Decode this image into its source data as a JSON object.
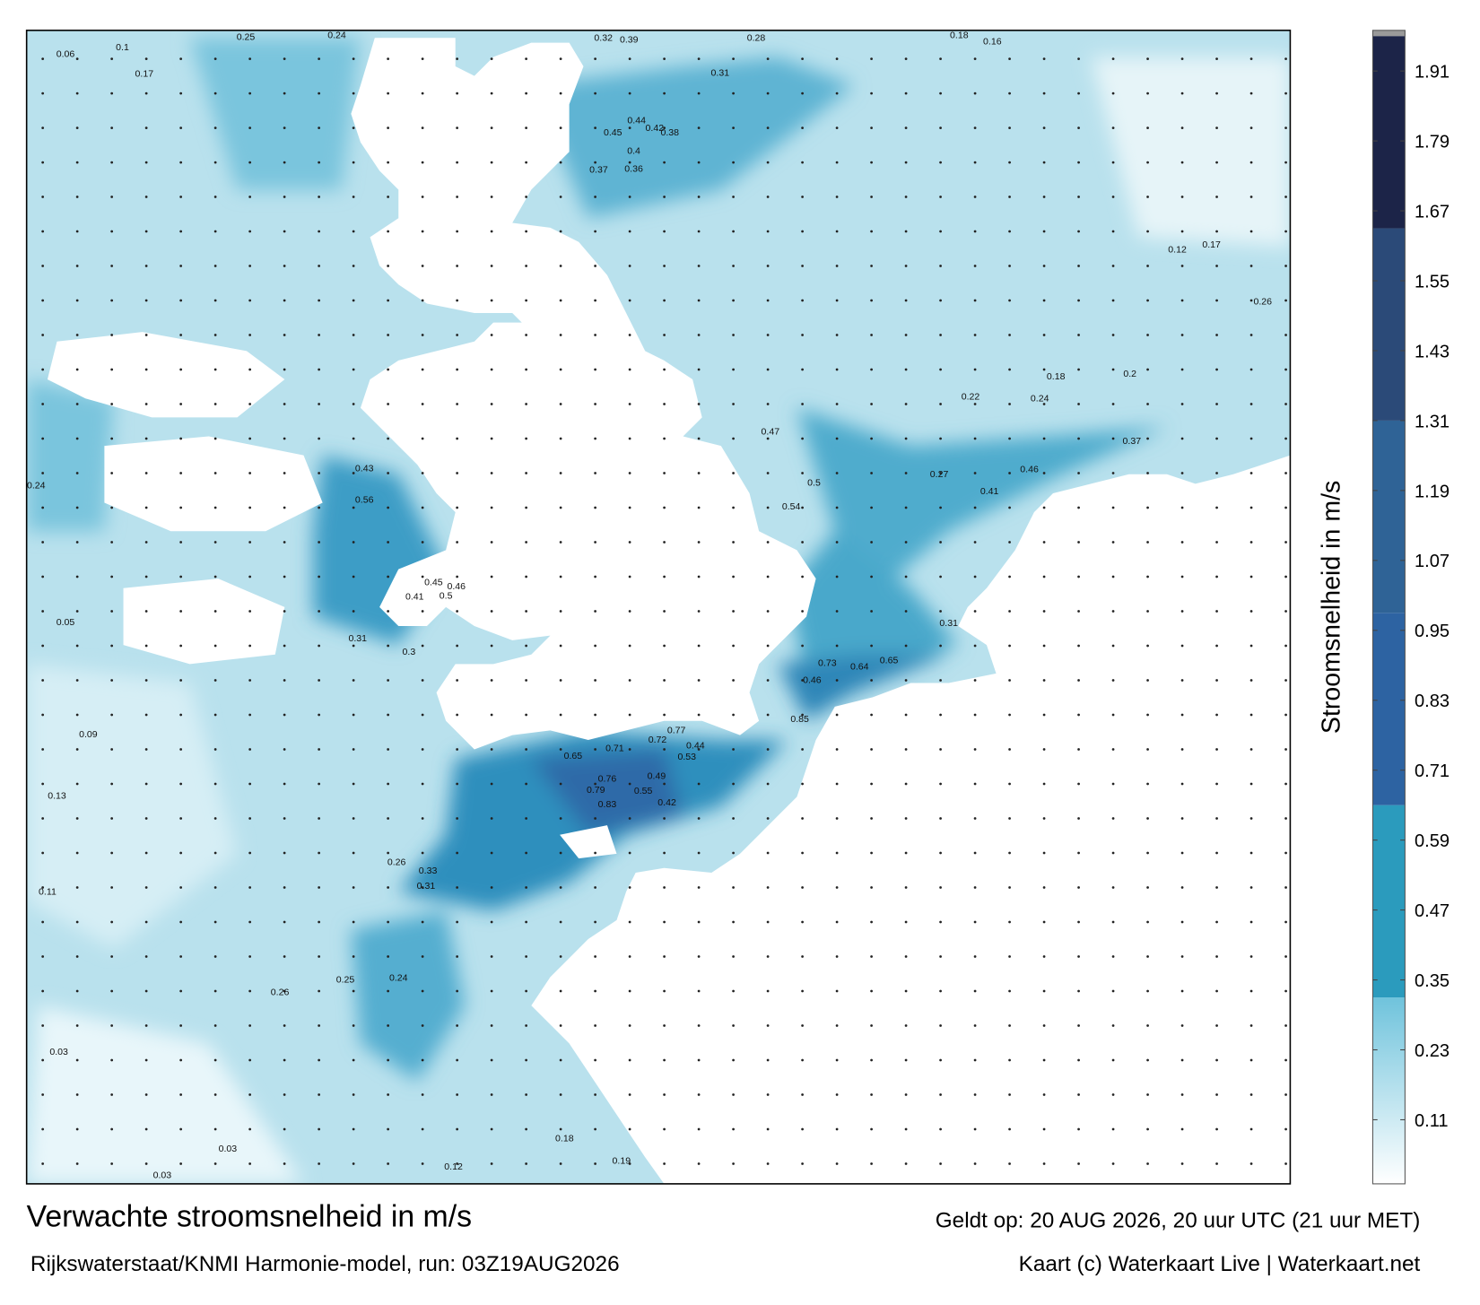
{
  "title": "Verwachte stroomsnelheid in m/s",
  "source": "Rijkswaterstaat/KNMI Harmonie-model, run: 03Z19AUG2026",
  "valid": "Geldt op: 20 AUG 2026, 20 uur UTC (21 uur MET)",
  "credit": "Kaart (c) Waterkaart Live | Waterkaart.net",
  "colorbar": {
    "label": "Stroomsnelheid in m/s",
    "lim": [
      0,
      1.97
    ],
    "ticks": [
      0.11,
      0.23,
      0.35,
      0.47,
      0.59,
      0.71,
      0.83,
      0.95,
      1.07,
      1.19,
      1.31,
      1.43,
      1.55,
      1.67,
      1.79,
      1.91
    ],
    "bands": [
      {
        "from": 0,
        "to": 0.32,
        "colors": [
          "#ffffff",
          "#6fc3dc"
        ]
      },
      {
        "from": 0.32,
        "to": 0.65,
        "colors": [
          "#2b9bbd",
          "#2b9bbd"
        ]
      },
      {
        "from": 0.65,
        "to": 0.98,
        "colors": [
          "#2d63a2",
          "#2d63a2"
        ]
      },
      {
        "from": 0.98,
        "to": 1.31,
        "colors": [
          "#2f6396",
          "#2f6396"
        ]
      },
      {
        "from": 1.31,
        "to": 1.64,
        "colors": [
          "#2b4a78",
          "#2b4a78"
        ]
      },
      {
        "from": 1.64,
        "to": 1.97,
        "colors": [
          "#1c2448",
          "#1c2448"
        ]
      }
    ],
    "cap_color": "#9a9a9a"
  },
  "map": {
    "labels": [
      0.65,
      0.76,
      0.79,
      0.83,
      0.71,
      0.72,
      0.77,
      0.55,
      0.49,
      0.53,
      0.44,
      0.42,
      0.73,
      0.64,
      0.85,
      0.65,
      0.46,
      0.45,
      0.46,
      0.5,
      0.41,
      0.56,
      0.43,
      0.44,
      0.42,
      0.45,
      0.4,
      0.38,
      0.36,
      0.37,
      0.39,
      0.32,
      0.31,
      0.28,
      0.18,
      0.16,
      0.06,
      0.1,
      0.25,
      0.24,
      0.47,
      0.54,
      0.5,
      0.46,
      0.41,
      0.37,
      0.27,
      0.24,
      0.22,
      0.18,
      0.2,
      0.26,
      0.12,
      0.17,
      0.31,
      0.3,
      0.31,
      0.33,
      0.31,
      0.26,
      0.24,
      0.25,
      0.26,
      0.03,
      0.03,
      0.03,
      0.12,
      0.19,
      0.18,
      0.13,
      0.11,
      0.09,
      0.05,
      0.24,
      0.17
    ]
  }
}
